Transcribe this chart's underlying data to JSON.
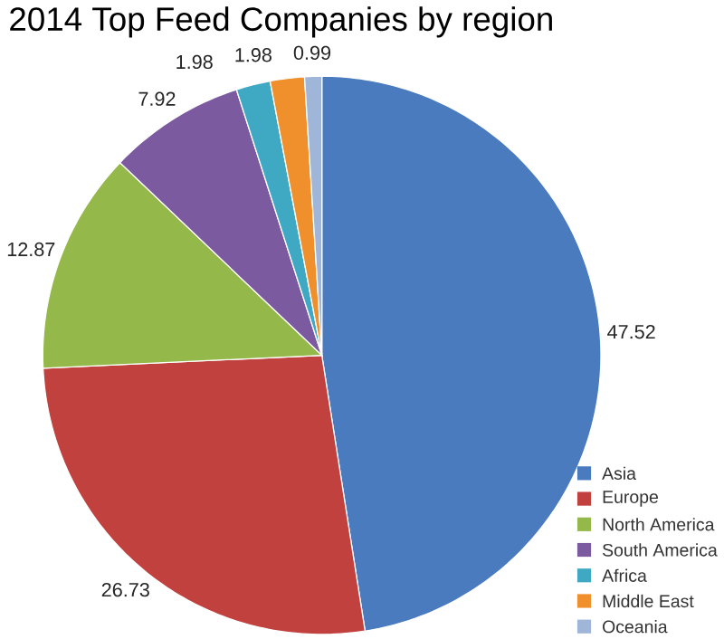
{
  "chart_data": {
    "type": "pie",
    "title": "2014 Top Feed Companies by region",
    "categories": [
      "Asia",
      "Europe",
      "North America",
      "South America",
      "Africa",
      "Middle East",
      "Oceania"
    ],
    "values": [
      47.52,
      26.73,
      12.87,
      7.92,
      1.98,
      1.98,
      0.99
    ],
    "colors": [
      "#4a7bbf",
      "#c0413e",
      "#94b84a",
      "#7b5aa0",
      "#3fa9c4",
      "#f0902c",
      "#9fb6d9"
    ],
    "data_labels": true,
    "legend": "right"
  }
}
